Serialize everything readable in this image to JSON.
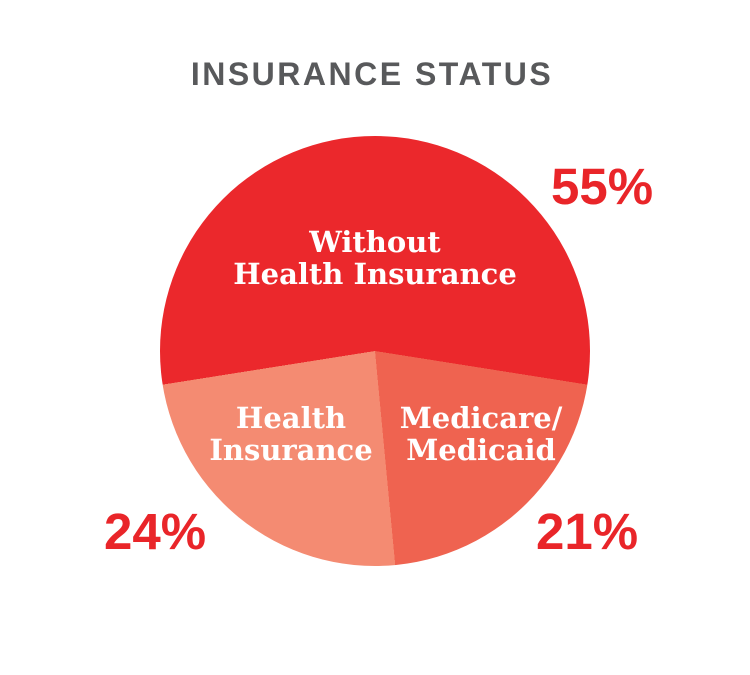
{
  "chart_data": {
    "type": "pie",
    "title": "INSURANCE STATUS",
    "legend": "none",
    "direction": "clockwise",
    "start_angle_deg": 261,
    "slices": [
      {
        "label": "Without Health Insurance",
        "label_lines": [
          "Without",
          "Health Insurance"
        ],
        "value": 55,
        "pct_label": "55%",
        "color": "#EB282C"
      },
      {
        "label": "Medicare/Medicaid",
        "label_lines": [
          "Medicare/",
          "Medicaid"
        ],
        "value": 21,
        "pct_label": "21%",
        "color": "#EF6350"
      },
      {
        "label": "Health Insurance",
        "label_lines": [
          "Health",
          "Insurance"
        ],
        "value": 24,
        "pct_label": "24%",
        "color": "#F48B72"
      }
    ],
    "colors": {
      "title_text": "#58595B",
      "slice_label_text": "#FFFFFF",
      "pct_label_text": "#E92529",
      "background": "#FFFFFF"
    }
  }
}
